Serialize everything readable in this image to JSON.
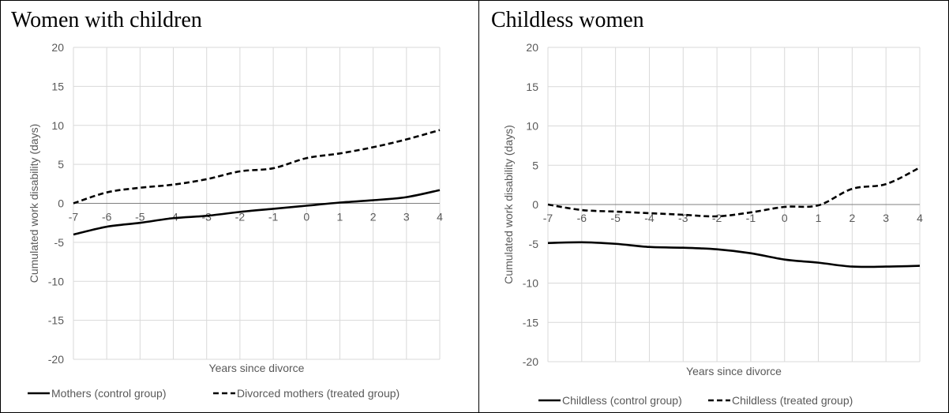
{
  "panels": [
    {
      "title": "Women with children",
      "chart_data": {
        "type": "line",
        "x": [
          -7,
          -6,
          -5,
          -4,
          -3,
          -2,
          -1,
          0,
          1,
          2,
          3,
          4
        ],
        "xlabel": "Years since divorce",
        "ylabel": "Cumulated work disability (days)",
        "ylim": [
          -20,
          20
        ],
        "yticks": [
          20,
          15,
          10,
          5,
          0,
          -5,
          -10,
          -15,
          -20
        ],
        "xticks": [
          "-7",
          "-6",
          "-5",
          "-4",
          "-3",
          "-2",
          "-1",
          "0",
          "1",
          "2",
          "3",
          "4"
        ],
        "grid": true,
        "legend_position": "bottom",
        "series": [
          {
            "name": "Mothers (control group)",
            "style": "solid",
            "color": "#000000",
            "values": [
              -4.0,
              -3.0,
              -2.5,
              -1.9,
              -1.6,
              -1.1,
              -0.7,
              -0.3,
              0.1,
              0.4,
              0.8,
              1.7
            ]
          },
          {
            "name": "Divorced mothers (treated group)",
            "style": "dashed",
            "color": "#000000",
            "values": [
              0.0,
              1.4,
              2.0,
              2.4,
              3.1,
              4.1,
              4.5,
              5.8,
              6.4,
              7.2,
              8.2,
              9.4
            ]
          }
        ]
      }
    },
    {
      "title": "Childless women",
      "chart_data": {
        "type": "line",
        "x": [
          -7,
          -6,
          -5,
          -4,
          -3,
          -2,
          -1,
          0,
          1,
          2,
          3,
          4
        ],
        "xlabel": "Years since divorce",
        "ylabel": "Cumulated work disability (days)",
        "ylim": [
          -20,
          20
        ],
        "yticks": [
          20,
          15,
          10,
          5,
          0,
          -5,
          -10,
          -15,
          -20
        ],
        "xticks": [
          "-7",
          "-6",
          "-5",
          "-4",
          "-3",
          "-2",
          "-1",
          "0",
          "1",
          "2",
          "3",
          "4"
        ],
        "grid": true,
        "legend_position": "bottom",
        "series": [
          {
            "name": "Childless (control group)",
            "style": "solid",
            "color": "#000000",
            "values": [
              -4.9,
              -4.8,
              -5.0,
              -5.4,
              -5.5,
              -5.7,
              -6.2,
              -7.0,
              -7.4,
              -7.9,
              -7.9,
              -7.8
            ]
          },
          {
            "name": "Childless (treated group)",
            "style": "dashed",
            "color": "#000000",
            "values": [
              0.0,
              -0.7,
              -0.9,
              -1.1,
              -1.3,
              -1.5,
              -1.0,
              -0.3,
              -0.1,
              2.0,
              2.6,
              4.7
            ]
          }
        ]
      }
    }
  ]
}
